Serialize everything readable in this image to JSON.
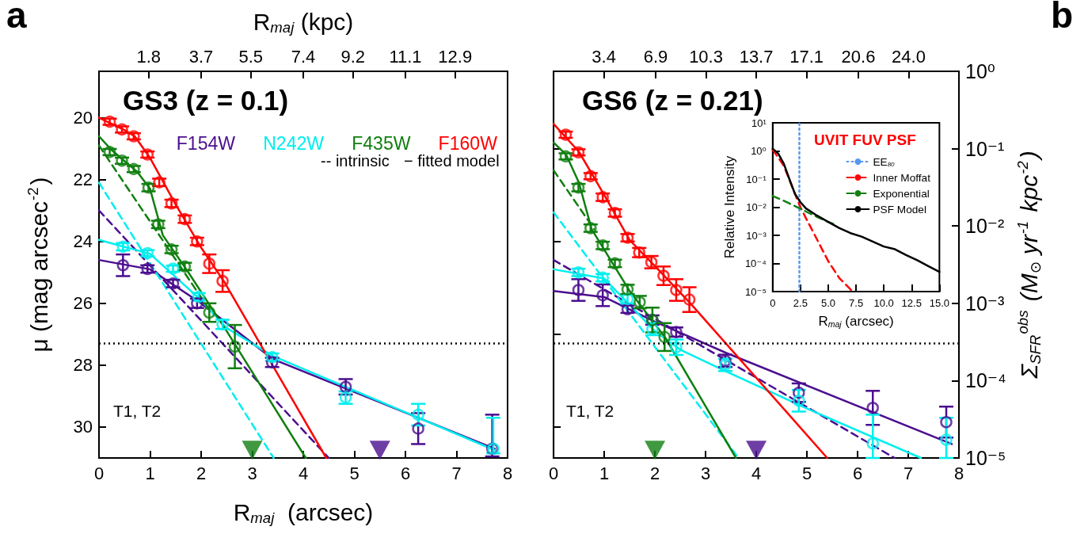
{
  "chart_data": [
    {
      "type": "scatter",
      "title": "GS3 (z = 0.1)",
      "xlabel": "R$_{maj}$  (arcsec)",
      "ylabel": "μ (mag arcsec$^{-2}$)",
      "x2label": "R$_{maj}$ (kpc)",
      "xlim": [
        0,
        8
      ],
      "xticks": [
        0,
        1,
        2,
        3,
        4,
        5,
        6,
        7,
        8
      ],
      "ylim": [
        31,
        18.5
      ],
      "yticks": [
        20,
        22,
        24,
        26,
        28,
        30
      ],
      "x2lim": [
        0,
        14.8
      ],
      "x2ticks": [
        1.8,
        3.7,
        5.5,
        7.4,
        9.2,
        11.1,
        12.9
      ],
      "annotations": [
        "a",
        "-- intrinsic",
        "− fitted model",
        "T1, T2"
      ],
      "ref_lines": [
        {
          "axis": "y",
          "value": 27.3,
          "color": "#000000",
          "line_style": "dotted"
        }
      ],
      "legend": "top right",
      "grid": false,
      "series": [
        {
          "type": "line",
          "color": "#4b0e8f",
          "line_style": "solid",
          "marker": "none",
          "x": [
            0,
            1,
            2,
            3.4,
            7.75
          ],
          "values": [
            24.6,
            24.9,
            26.0,
            27.8,
            30.7
          ]
        },
        {
          "type": "line",
          "color": "#4b0e8f",
          "line_style": "dashed",
          "marker": "none",
          "x": [
            0,
            4.5
          ],
          "values": [
            23.0,
            31
          ]
        },
        {
          "type": "line",
          "color": "#00eeee",
          "line_style": "solid",
          "marker": "none",
          "x": [
            0,
            1,
            2,
            2.5,
            3.4,
            7.75
          ],
          "values": [
            23.95,
            24.4,
            25.9,
            26.8,
            27.7,
            30.75
          ]
        },
        {
          "type": "line",
          "color": "#00eeee",
          "line_style": "dashed",
          "marker": "none",
          "x": [
            0,
            3.42
          ],
          "values": [
            22.1,
            31
          ]
        },
        {
          "type": "line",
          "color": "#107f10",
          "line_style": "solid",
          "marker": "none",
          "x": [
            0,
            0.25,
            0.5,
            0.75,
            1,
            1.25,
            1.5,
            1.75,
            2.5,
            4.05
          ],
          "values": [
            20.6,
            21.05,
            21.4,
            21.75,
            22.3,
            23.8,
            24.4,
            25.0,
            26.9,
            31
          ]
        },
        {
          "type": "line",
          "color": "#107f10",
          "line_style": "dashed",
          "marker": "none",
          "x": [
            0,
            2.2
          ],
          "values": [
            20.9,
            26.3
          ]
        },
        {
          "type": "line",
          "color": "#ff0000",
          "line_style": "solid",
          "marker": "none",
          "x": [
            0,
            0.5,
            0.7,
            1,
            1.5,
            2,
            2.45,
            4.45
          ],
          "values": [
            20.0,
            20.4,
            20.6,
            21.3,
            22.8,
            24.2,
            25.3,
            31
          ]
        },
        {
          "name": "F154W",
          "color": "#4b0e8f",
          "marker": "circle",
          "x": [
            0.47,
            0.95,
            1.45,
            1.92,
            3.39,
            4.83,
            6.25,
            7.7
          ],
          "values": [
            24.77,
            24.89,
            25.36,
            26.0,
            27.91,
            28.7,
            30.05,
            30.7
          ],
          "errors": [
            0.35,
            0.12,
            0.12,
            0.15,
            0.15,
            0.25,
            0.5,
            [
              29.6,
              30.95
            ]
          ]
        },
        {
          "name": "N242W",
          "color": "#00eeee",
          "marker": "circle",
          "x": [
            0.47,
            0.95,
            1.45,
            1.95,
            2.42,
            3.39,
            4.83,
            6.25,
            7.72
          ],
          "values": [
            24.17,
            24.38,
            24.88,
            25.79,
            26.68,
            27.74,
            29.05,
            29.6,
            30.7
          ],
          "errors": [
            0.12,
            0.1,
            0.1,
            0.12,
            0.15,
            0.12,
            0.2,
            0.35,
            [
              29.7,
              30.85
            ]
          ]
        },
        {
          "name": "F435W",
          "color": "#107f10",
          "marker": "circle",
          "x": [
            0.21,
            0.45,
            0.68,
            0.97,
            1.16,
            1.42,
            1.68,
            2.16,
            2.66
          ],
          "values": [
            21.11,
            21.39,
            21.66,
            22.26,
            23.45,
            24.26,
            24.81,
            26.3,
            27.4
          ],
          "errors": [
            0.1,
            0.1,
            0.1,
            0.12,
            0.12,
            0.12,
            0.12,
            0.3,
            0.7
          ]
        },
        {
          "name": "F160W",
          "color": "#ff0000",
          "marker": "circle",
          "x": [
            0.21,
            0.45,
            0.68,
            0.95,
            1.18,
            1.42,
            1.68,
            1.92,
            2.16,
            2.42
          ],
          "values": [
            20.13,
            20.38,
            20.6,
            21.19,
            22.09,
            22.77,
            23.28,
            24.0,
            24.72,
            25.28
          ],
          "errors": [
            0.1,
            0.1,
            0.1,
            0.1,
            0.12,
            0.12,
            0.12,
            0.12,
            0.3,
            0.35
          ]
        },
        {
          "color": "#107f10",
          "marker": "triangle",
          "x": [
            3.0
          ],
          "values": [
            30.75
          ]
        },
        {
          "color": "#4b0e8f",
          "marker": "triangle",
          "x": [
            5.5
          ],
          "values": [
            30.75
          ]
        }
      ]
    },
    {
      "type": "scatter",
      "title": "GS6 (z = 0.21)",
      "y2label": "Σ$_{SFR}$$^{obs}$ (M$_{⊙}$ yr$^{-1}$ kpc$^{-2}$)",
      "xlim": [
        0,
        8
      ],
      "xticks": [
        0,
        1,
        2,
        3,
        4,
        5,
        6,
        7,
        8
      ],
      "ylim": [
        31,
        18.5
      ],
      "x2lim": [
        0,
        27.4
      ],
      "x2ticks": [
        3.4,
        6.9,
        10.3,
        13.7,
        17.1,
        20.6,
        {
          "value": 24,
          "label": "24.0"
        }
      ],
      "tick_labels": [
        "x",
        "x2",
        "y2"
      ],
      "y2lim": [
        1e-05,
        1
      ],
      "y2ticks": [
        {
          "value": 1,
          "label": "10⁰"
        },
        {
          "value": 0.1,
          "label": "10⁻¹"
        },
        {
          "value": 0.01,
          "label": "10⁻²"
        },
        {
          "value": 0.001,
          "label": "10⁻³"
        },
        {
          "value": 0.0001,
          "label": "10⁻⁴"
        },
        {
          "value": 1e-05,
          "label": "10⁻⁵"
        }
      ],
      "log": "y2",
      "annotations": [
        "b",
        "T1, T2"
      ],
      "ref_lines": [
        {
          "axis": "y",
          "value": 27.3,
          "color": "#000000",
          "line_style": "dotted"
        }
      ],
      "grid": false,
      "series": [
        {
          "type": "line",
          "color": "#4b0e8f",
          "line_style": "solid",
          "marker": "none",
          "x": [
            0,
            1,
            2,
            2.5,
            3.4,
            7.86
          ],
          "values": [
            25.6,
            25.8,
            26.6,
            26.95,
            27.6,
            30.55
          ]
        },
        {
          "type": "line",
          "color": "#4b0e8f",
          "line_style": "dashed",
          "marker": "none",
          "x": [
            0,
            6.73
          ],
          "values": [
            24.6,
            31
          ]
        },
        {
          "type": "line",
          "color": "#00eeee",
          "line_style": "solid",
          "marker": "none",
          "x": [
            0,
            1,
            2,
            2.5,
            3.4,
            5,
            7.25
          ],
          "values": [
            24.9,
            25.2,
            26.9,
            27.5,
            28.2,
            29.4,
            31
          ]
        },
        {
          "type": "line",
          "color": "#00eeee",
          "line_style": "dashed",
          "marker": "none",
          "x": [
            0,
            3.65
          ],
          "values": [
            23.06,
            31
          ]
        },
        {
          "type": "line",
          "color": "#107f10",
          "line_style": "solid",
          "marker": "none",
          "x": [
            0,
            0.25,
            0.5,
            0.75,
            1.5,
            2.2,
            3.6
          ],
          "values": [
            20.8,
            21.2,
            22.1,
            23.6,
            25.6,
            27.1,
            31
          ]
        },
        {
          "type": "line",
          "color": "#107f10",
          "line_style": "dashed",
          "marker": "none",
          "x": [
            0,
            0.8
          ],
          "values": [
            21.7,
            23.6
          ]
        },
        {
          "type": "line",
          "color": "#ff0000",
          "line_style": "solid",
          "marker": "none",
          "x": [
            0,
            0.5,
            1,
            1.5,
            2,
            2.7,
            5.4
          ],
          "values": [
            20.2,
            21.1,
            22.5,
            23.95,
            24.8,
            26.0,
            31
          ]
        },
        {
          "color": "#4b0e8f",
          "marker": "circle",
          "x": [
            0.49,
            0.97,
            1.46,
            1.95,
            2.42,
            3.39,
            4.84,
            6.3,
            7.75
          ],
          "values": [
            25.57,
            25.74,
            26.19,
            26.54,
            26.93,
            27.86,
            28.89,
            29.38,
            29.84
          ],
          "errors": [
            0.35,
            0.35,
            0.12,
            0.15,
            0.15,
            0.2,
            0.3,
            0.55,
            0.5
          ]
        },
        {
          "color": "#00eeee",
          "marker": "circle",
          "x": [
            0.49,
            0.97,
            1.46,
            1.95,
            2.42,
            3.39,
            4.84,
            6.3,
            7.75
          ],
          "values": [
            25.0,
            25.17,
            25.86,
            26.83,
            27.42,
            27.99,
            29.15,
            30.53,
            30.41
          ],
          "errors": [
            0.12,
            0.12,
            0.15,
            0.2,
            0.25,
            0.2,
            0.35,
            [
              29.6,
              31.0
            ],
            [
              29.7,
              31.0
            ]
          ]
        },
        {
          "color": "#107f10",
          "marker": "circle",
          "x": [
            0.24,
            0.49,
            0.73,
            0.97,
            1.21,
            1.46,
            1.7,
            1.95,
            2.19
          ],
          "values": [
            21.25,
            22.26,
            23.57,
            24.13,
            24.71,
            25.55,
            25.96,
            26.54,
            27.09
          ],
          "errors": [
            0.1,
            0.12,
            0.12,
            0.12,
            0.12,
            0.15,
            0.2,
            0.4,
            0.45
          ]
        },
        {
          "color": "#ff0000",
          "marker": "circle",
          "x": [
            0.24,
            0.49,
            0.73,
            0.97,
            1.21,
            1.46,
            1.69,
            1.93,
            2.17,
            2.42,
            2.68
          ],
          "values": [
            20.55,
            21.12,
            21.89,
            22.57,
            23.08,
            23.88,
            24.36,
            24.67,
            25.11,
            25.57,
            25.88
          ],
          "errors": [
            0.1,
            0.1,
            0.1,
            0.12,
            0.12,
            0.12,
            0.15,
            0.2,
            0.3,
            0.35,
            0.4
          ]
        },
        {
          "color": "#107f10",
          "marker": "triangle",
          "x": [
            2.0
          ],
          "values": [
            30.75
          ]
        },
        {
          "color": "#4b0e8f",
          "marker": "triangle",
          "x": [
            4.0
          ],
          "values": [
            30.75
          ]
        }
      ]
    },
    {
      "type": "line",
      "title": "UVIT FUV PSF",
      "xlabel": "R$_{maj}$ (arcsec)",
      "ylabel": "Relative Intensity",
      "log": "y",
      "xlim": [
        0,
        15
      ],
      "xticks": [
        0,
        {
          "value": 2.5,
          "label": "2.5"
        },
        {
          "value": 5,
          "label": "5.0"
        },
        {
          "value": 7.5,
          "label": "7.5"
        },
        {
          "value": 10,
          "label": "10.0"
        },
        {
          "value": 12.5,
          "label": "12.5"
        },
        {
          "value": 15,
          "label": "15.0"
        }
      ],
      "ylim": [
        1e-05,
        10
      ],
      "yticks": [
        {
          "value": 10,
          "label": "10¹"
        },
        {
          "value": 1,
          "label": "10⁰"
        },
        {
          "value": 0.1,
          "label": "10⁻¹"
        },
        {
          "value": 0.01,
          "label": "10⁻²"
        },
        {
          "value": 0.001,
          "label": "10⁻³"
        },
        {
          "value": 0.0001,
          "label": "10⁻⁴"
        },
        {
          "value": 1e-05,
          "label": "10⁻⁵"
        }
      ],
      "legend": "top right",
      "grid": false,
      "marker": "none",
      "series": [
        {
          "name": "EE$_{80}$",
          "color": "#5599ee",
          "line_style": "dotted",
          "x": [
            2.4,
            2.4
          ],
          "values": [
            1e-05,
            10
          ]
        },
        {
          "name": "Inner Moffat",
          "color": "#ff0000",
          "line_style": "dashed",
          "x": [
            0,
            1,
            2,
            2.5,
            3,
            4,
            5,
            6,
            7.2
          ],
          "values": [
            1.1,
            0.3,
            0.03,
            0.01,
            0.004,
            0.0007,
            0.00012,
            3e-05,
            1e-05
          ]
        },
        {
          "name": "Exponential",
          "color": "#108010",
          "line_style": "dashed",
          "x": [
            0,
            1,
            2,
            3,
            4,
            5,
            5.5
          ],
          "values": [
            0.025,
            0.017,
            0.011,
            0.007,
            0.0045,
            0.003,
            0.0025
          ]
        },
        {
          "name": "PSF Model",
          "color": "#000000",
          "line_style": "solid",
          "x": [
            0,
            0.5,
            1,
            1.5,
            2,
            2.5,
            3,
            4,
            5,
            6,
            7,
            8,
            9,
            10,
            11,
            12,
            13,
            14,
            15
          ],
          "values": [
            1.2,
            0.8,
            0.35,
            0.1,
            0.03,
            0.015,
            0.009,
            0.005,
            0.003,
            0.0018,
            0.0012,
            0.0009,
            0.0006,
            0.0004,
            0.00032,
            0.0002,
            0.00013,
            8e-05,
            5e-05
          ]
        }
      ]
    }
  ]
}
